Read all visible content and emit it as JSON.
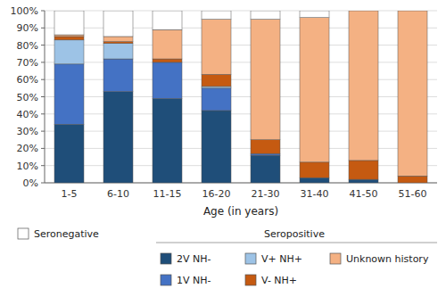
{
  "chart_data": {
    "type": "bar",
    "stacked": true,
    "categories": [
      "1-5",
      "6-10",
      "11-15",
      "16-20",
      "21-30",
      "31-40",
      "41-50",
      "51-60"
    ],
    "x_label": "Age (in years)",
    "series": [
      {
        "name": "2V NH-",
        "color": "#1f4e79",
        "values": [
          34,
          53,
          49,
          42,
          16,
          3,
          2,
          0
        ]
      },
      {
        "name": "1V NH-",
        "color": "#4472c4",
        "values": [
          35,
          19,
          21,
          13,
          1,
          0,
          0,
          0
        ]
      },
      {
        "name": "V+ NH+",
        "color": "#9dc3e6",
        "values": [
          14,
          9,
          0,
          1,
          0,
          0,
          0,
          0
        ]
      },
      {
        "name": "V- NH+",
        "color": "#c55a11",
        "values": [
          2,
          1,
          2,
          7,
          8,
          9,
          11,
          4
        ]
      },
      {
        "name": "Unknown history",
        "color": "#f4b183",
        "values": [
          1,
          3,
          17,
          32,
          70,
          84,
          87,
          96
        ]
      },
      {
        "name": "Seronegative",
        "color": "#ffffff",
        "values": [
          14,
          15,
          11,
          5,
          5,
          4,
          0,
          0
        ]
      }
    ],
    "annotations": [
      {
        "text": "Seropositive"
      }
    ],
    "ylim": [
      0,
      100
    ],
    "yticks": [
      {
        "value": 0,
        "label": "0%"
      },
      {
        "value": 10,
        "label": "10%"
      },
      {
        "value": 20,
        "label": "20%"
      },
      {
        "value": 30,
        "label": "30%"
      },
      {
        "value": 40,
        "label": "40%"
      },
      {
        "value": 50,
        "label": "50%"
      },
      {
        "value": 60,
        "label": "60%"
      },
      {
        "value": 70,
        "label": "70%"
      },
      {
        "value": 80,
        "label": "80%"
      },
      {
        "value": 90,
        "label": "90%"
      },
      {
        "value": 100,
        "label": "100%"
      }
    ],
    "grid": true,
    "legend": "bottom"
  }
}
